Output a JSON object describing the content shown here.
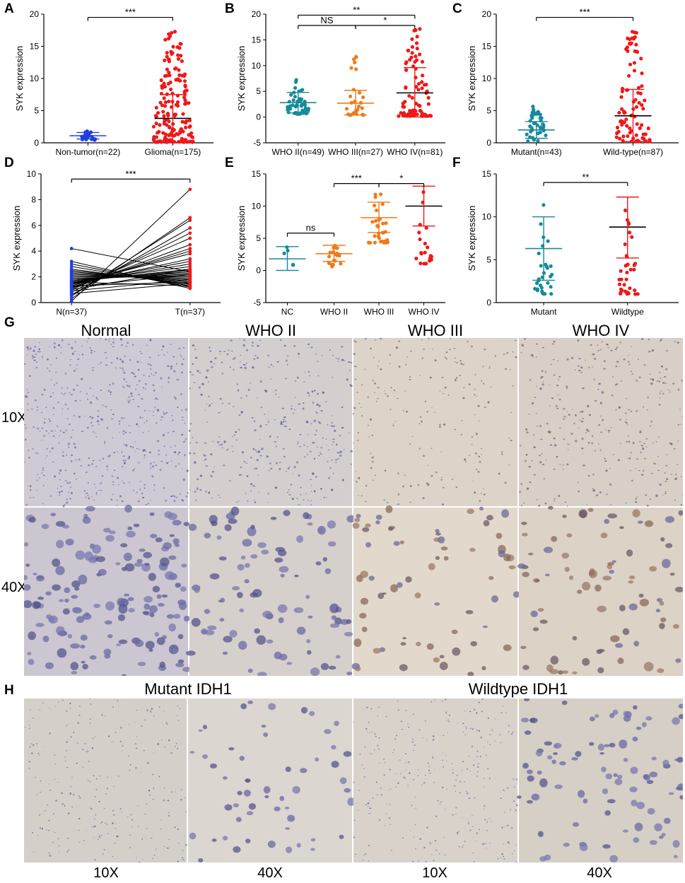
{
  "panels": {
    "A": "A",
    "B": "B",
    "C": "C",
    "D": "D",
    "E": "E",
    "F": "F",
    "G": "G",
    "H": "H"
  },
  "colors": {
    "blue": "#1f3fe0",
    "red": "#f01818",
    "teal": "#168a9a",
    "orange": "#f07a1a",
    "black": "#000000",
    "tissue_blue": "#c6c3cf",
    "tissue_brown": "#d8cfc2"
  },
  "chart_data": [
    {
      "id": "A",
      "type": "scatter",
      "ylabel": "SYK expression",
      "ylim": [
        0,
        20
      ],
      "yticks": [
        0,
        5,
        10,
        15,
        20
      ],
      "categories": [
        "Non-tumor(n=22)",
        "Glioma(n=175)"
      ],
      "series": [
        {
          "category": "Non-tumor(n=22)",
          "color": "#1f3fe0",
          "n": 22,
          "mean": 1.1,
          "sd_low": 0.6,
          "sd_high": 1.6,
          "min": 0.4,
          "max": 1.8
        },
        {
          "category": "Glioma(n=175)",
          "color": "#f01818",
          "n": 175,
          "mean": 3.8,
          "sd_low": 0.1,
          "sd_high": 7.5,
          "min": 0.1,
          "max": 17.5
        }
      ],
      "annotations": [
        {
          "label": "***",
          "from": 0,
          "to": 1,
          "y": 19.5
        }
      ]
    },
    {
      "id": "B",
      "type": "scatter",
      "ylabel": "SYK expression",
      "ylim": [
        -5,
        20
      ],
      "yticks": [
        -5,
        0,
        5,
        10,
        15,
        20
      ],
      "categories": [
        "WHO II(n=49)",
        "WHO III(n=27)",
        "WHO IV(n=81)"
      ],
      "series": [
        {
          "category": "WHO II(n=49)",
          "color": "#168a9a",
          "n": 49,
          "mean": 2.8,
          "sd_low": 0.8,
          "sd_high": 4.8,
          "min": 0.6,
          "max": 8.0
        },
        {
          "category": "WHO III(n=27)",
          "color": "#f07a1a",
          "n": 27,
          "mean": 2.7,
          "sd_low": 0.4,
          "sd_high": 5.2,
          "min": 0.4,
          "max": 12.7
        },
        {
          "category": "WHO IV(n=81)",
          "color": "#f01818",
          "n": 81,
          "mean": 4.7,
          "sd_low": 0.0,
          "sd_high": 9.6,
          "min": 0.2,
          "max": 17.5
        }
      ],
      "annotations": [
        {
          "label": "**",
          "from": 0,
          "to": 2,
          "y": 19.8
        },
        {
          "label": "NS",
          "from": 0,
          "to": 1,
          "y": 17.8
        },
        {
          "label": "*",
          "from": 1,
          "to": 2,
          "y": 17.8
        }
      ]
    },
    {
      "id": "C",
      "type": "scatter",
      "ylabel": "SYK expression",
      "ylim": [
        0,
        20
      ],
      "yticks": [
        0,
        5,
        10,
        15,
        20
      ],
      "categories": [
        "Mutant(n=43)",
        "Wild-type(n=87)"
      ],
      "series": [
        {
          "category": "Mutant(n=43)",
          "color": "#168a9a",
          "n": 43,
          "mean": 2.0,
          "sd_low": 0.7,
          "sd_high": 3.3,
          "min": 0.2,
          "max": 5.8
        },
        {
          "category": "Wild-type(n=87)",
          "color": "#f01818",
          "n": 87,
          "mean": 4.2,
          "sd_low": 0.2,
          "sd_high": 8.3,
          "min": 0.2,
          "max": 17.5
        }
      ],
      "annotations": [
        {
          "label": "***",
          "from": 0,
          "to": 1,
          "y": 19.5
        }
      ]
    },
    {
      "id": "D",
      "type": "line",
      "ylabel": "SYK expression",
      "ylim": [
        0,
        10
      ],
      "yticks": [
        0,
        2,
        4,
        6,
        8,
        10
      ],
      "categories": [
        "N(n=37)",
        "T(n=37)"
      ],
      "pairs": [
        [
          0.1,
          8.8
        ],
        [
          0.3,
          6.6
        ],
        [
          0.5,
          6.4
        ],
        [
          0.6,
          5.8
        ],
        [
          0.8,
          5.4
        ],
        [
          1.0,
          5.0
        ],
        [
          1.1,
          4.5
        ],
        [
          1.2,
          4.2
        ],
        [
          1.3,
          4.0
        ],
        [
          1.4,
          3.8
        ],
        [
          1.4,
          3.4
        ],
        [
          1.5,
          3.2
        ],
        [
          1.5,
          3.0
        ],
        [
          1.6,
          2.8
        ],
        [
          1.6,
          2.6
        ],
        [
          1.7,
          2.5
        ],
        [
          1.7,
          2.4
        ],
        [
          1.8,
          2.3
        ],
        [
          1.8,
          2.2
        ],
        [
          1.9,
          2.1
        ],
        [
          2.0,
          2.0
        ],
        [
          2.1,
          1.9
        ],
        [
          2.2,
          1.8
        ],
        [
          2.3,
          1.7
        ],
        [
          2.4,
          1.6
        ],
        [
          2.5,
          1.5
        ],
        [
          2.6,
          1.4
        ],
        [
          2.8,
          1.3
        ],
        [
          3.0,
          1.2
        ],
        [
          3.2,
          1.1
        ],
        [
          1.0,
          2.6
        ],
        [
          1.2,
          2.2
        ],
        [
          0.9,
          1.8
        ],
        [
          1.3,
          1.6
        ],
        [
          4.2,
          2.4
        ],
        [
          1.6,
          1.3
        ],
        [
          0.7,
          1.5
        ]
      ],
      "n_color": "#1f3fe0",
      "t_color": "#f01818",
      "annotations": [
        {
          "label": "***",
          "from": 0,
          "to": 1,
          "y": 9.6
        }
      ]
    },
    {
      "id": "E",
      "type": "scatter",
      "ylabel": "SYK expression",
      "ylim": [
        -5,
        15
      ],
      "yticks": [
        -5,
        0,
        5,
        10,
        15
      ],
      "categories": [
        "NC",
        "WHO II",
        "WHO III",
        "WHO IV"
      ],
      "series": [
        {
          "category": "NC",
          "color": "#168a9a",
          "n": 5,
          "mean": 1.8,
          "sd_low": 0.0,
          "sd_high": 3.7,
          "min": 0.0,
          "max": 3.7
        },
        {
          "category": "WHO II",
          "color": "#f07a1a",
          "n": 20,
          "mean": 2.6,
          "sd_low": 1.4,
          "sd_high": 3.9,
          "min": 0.5,
          "max": 4.0
        },
        {
          "category": "WHO III",
          "color": "#f07a1a",
          "n": 32,
          "mean": 8.2,
          "sd_low": 5.9,
          "sd_high": 10.6,
          "min": 4.3,
          "max": 12.5
        },
        {
          "category": "WHO IV",
          "color": "#f01818",
          "n": 21,
          "mean": 10.0,
          "sd_low": 6.9,
          "sd_high": 13.1,
          "min": 1.0,
          "max": 12.8
        }
      ],
      "annotations": [
        {
          "label": "ns",
          "from": 0,
          "to": 1,
          "y": 5.8
        },
        {
          "label": "***",
          "from": 1,
          "to": 2,
          "y": 13.5
        },
        {
          "label": "*",
          "from": 2,
          "to": 3,
          "y": 13.5
        }
      ]
    },
    {
      "id": "F",
      "type": "scatter",
      "ylabel": "SYK expression",
      "ylim": [
        0,
        15
      ],
      "yticks": [
        0,
        5,
        10,
        15
      ],
      "categories": [
        "Mutant",
        "Wildtype"
      ],
      "series": [
        {
          "category": "Mutant",
          "color": "#168a9a",
          "n": 30,
          "mean": 6.3,
          "sd_low": 2.6,
          "sd_high": 10.0,
          "min": 1.0,
          "max": 12.0
        },
        {
          "category": "Wildtype",
          "color": "#f01818",
          "n": 36,
          "mean": 8.8,
          "sd_low": 5.2,
          "sd_high": 12.3,
          "min": 1.0,
          "max": 12.0
        }
      ],
      "annotations": [
        {
          "label": "**",
          "from": 0,
          "to": 1,
          "y": 14.0
        }
      ]
    }
  ],
  "ihc_g": {
    "titles": [
      "Normal",
      "WHO II",
      "WHO III",
      "WHO IV"
    ],
    "row_labels": [
      "10X",
      "40X"
    ]
  },
  "ihc_h": {
    "titles": [
      "Mutant IDH1",
      "Wildtype IDH1"
    ],
    "bottom_labels": [
      "10X",
      "40X",
      "10X",
      "40X"
    ]
  }
}
